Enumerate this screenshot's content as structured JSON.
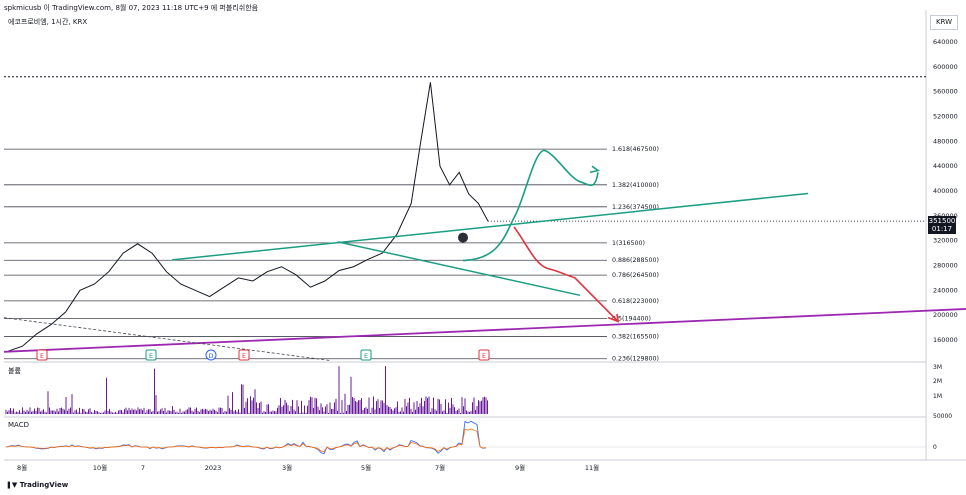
{
  "header": {
    "publish_line": "spkmicusb 이 TradingView.com, 8월 07, 2023 11:18 UTC+9 에 퍼블리쉬한음",
    "symbol_line": "에코프로비엠, 1시간, KRX",
    "currency": "KRW",
    "brand": "TradingView"
  },
  "colors": {
    "candle": "#131722",
    "fib_line": "#434651",
    "trend_green": "#1a9e83",
    "projection_red": "#e0323f",
    "support_purple": "#9c27b0",
    "volume": "#6a1b9a",
    "macd": "#2962ff",
    "signal": "#ff6d00"
  },
  "panes": {
    "volume_label": "볼륨",
    "macd_label": "MACD"
  },
  "current_price": {
    "value": "351500",
    "timer": "01:17"
  },
  "chart_data": {
    "type": "line",
    "title": "",
    "price_axis": {
      "ticks": [
        640000,
        600000,
        560000,
        520000,
        480000,
        440000,
        400000,
        360000,
        320000,
        280000,
        240000,
        200000,
        160000
      ],
      "labels": [
        "640000",
        "600000",
        "560000",
        "520000",
        "480000",
        "440000",
        "400000",
        "360000",
        "320000",
        "280000",
        "240000",
        "200000",
        "160000"
      ]
    },
    "time_axis": [
      "8월",
      "10월",
      "7",
      "2023",
      "3월",
      "5월",
      "7월",
      "9월",
      "11월"
    ],
    "fib_levels": [
      {
        "label": "1.618(467500)",
        "value": 467500
      },
      {
        "label": "1.382(410000)",
        "value": 410000
      },
      {
        "label": "1.236(374500)",
        "value": 374500
      },
      {
        "label": "1(316500)",
        "value": 316500
      },
      {
        "label": "0.886(288500)",
        "value": 288500
      },
      {
        "label": "0.786(264500)",
        "value": 264500
      },
      {
        "label": "0.618(223000)",
        "value": 223000
      },
      {
        "label": "0.5(194400)",
        "value": 194400
      },
      {
        "label": "0.382(165500)",
        "value": 165500
      },
      {
        "label": "0.236(129800)",
        "value": 129800
      }
    ],
    "top_dotted_level": 584000,
    "price_series": [
      [
        0.0,
        142000
      ],
      [
        0.03,
        150000
      ],
      [
        0.06,
        170000
      ],
      [
        0.09,
        185000
      ],
      [
        0.12,
        205000
      ],
      [
        0.15,
        240000
      ],
      [
        0.18,
        250000
      ],
      [
        0.21,
        270000
      ],
      [
        0.24,
        300000
      ],
      [
        0.27,
        315000
      ],
      [
        0.3,
        300000
      ],
      [
        0.33,
        270000
      ],
      [
        0.36,
        250000
      ],
      [
        0.39,
        240000
      ],
      [
        0.42,
        230000
      ],
      [
        0.45,
        245000
      ],
      [
        0.48,
        260000
      ],
      [
        0.51,
        255000
      ],
      [
        0.54,
        270000
      ],
      [
        0.57,
        278000
      ],
      [
        0.6,
        265000
      ],
      [
        0.63,
        245000
      ],
      [
        0.66,
        255000
      ],
      [
        0.69,
        272000
      ],
      [
        0.72,
        278000
      ],
      [
        0.75,
        290000
      ],
      [
        0.78,
        300000
      ],
      [
        0.81,
        330000
      ],
      [
        0.84,
        380000
      ],
      [
        0.86,
        480000
      ],
      [
        0.88,
        575000
      ],
      [
        0.9,
        440000
      ],
      [
        0.92,
        410000
      ],
      [
        0.94,
        430000
      ],
      [
        0.96,
        395000
      ],
      [
        0.98,
        380000
      ],
      [
        1.0,
        351500
      ]
    ],
    "volume_axis": [
      "3M",
      "2M",
      "1M"
    ],
    "macd_axis": [
      "50000",
      "0"
    ],
    "event_markers": [
      "E",
      "E",
      "D",
      "E",
      "E",
      "E"
    ]
  }
}
